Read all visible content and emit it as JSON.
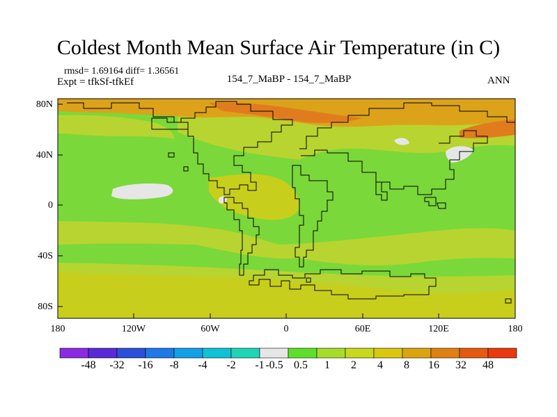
{
  "title": "Coldest Month Mean Surface Air Temperature (in C)",
  "stats": "rmsd= 1.69164 diff= 1.36561",
  "expt": "Expt = tfkSf-tfkEf",
  "center_label": "154_7_MaBP - 154_7_MaBP",
  "season": "ANN",
  "axes": {
    "lat_labels": [
      "80N",
      "40N",
      "0",
      "40S",
      "80S"
    ],
    "lon_labels": [
      "180",
      "120W",
      "60W",
      "0",
      "60E",
      "120E",
      "180"
    ]
  },
  "colorbar": {
    "labels": [
      "-48",
      "-32",
      "-16",
      "-8",
      "-4",
      "-2",
      "-1",
      "-0.5",
      "0.5",
      "1",
      "2",
      "4",
      "8",
      "16",
      "32",
      "48"
    ],
    "colors": [
      "#8a2be2",
      "#5a2ad6",
      "#2a4fd8",
      "#1e78e6",
      "#12a0e6",
      "#10c2d6",
      "#20d4b6",
      "#e6e6e6",
      "#5ee02a",
      "#a8dc2a",
      "#c8d81c",
      "#d9c710",
      "#dba40e",
      "#df8010",
      "#e45a10",
      "#e83a0e"
    ]
  },
  "field_colors": {
    "base": "#7ad83a",
    "mid_green": "#5fe025",
    "yellow_green": "#b8d430",
    "olive": "#c8ce1c",
    "orange": "#dca21a",
    "deep_orange": "#e07c1e",
    "white": "#e6e6e6"
  }
}
